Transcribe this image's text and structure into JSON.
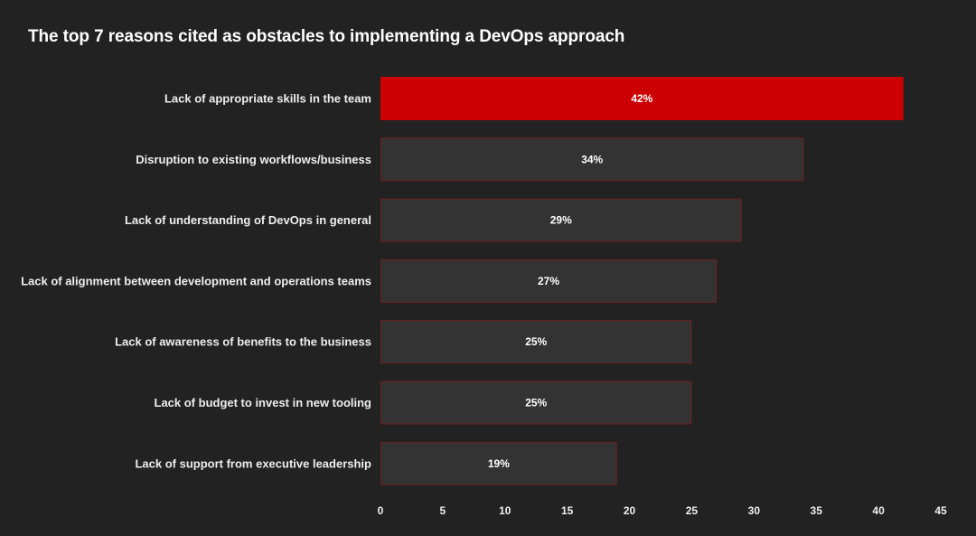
{
  "chart_data": {
    "type": "bar",
    "orientation": "horizontal",
    "title": "The top 7 reasons cited as obstacles to implementing a DevOps approach",
    "categories": [
      "Lack of appropriate skills in the team",
      "Disruption to existing workflows/business",
      "Lack of understanding of DevOps in general",
      "Lack of alignment between development and operations teams",
      "Lack of awareness of benefits to the business",
      "Lack of budget to invest in new tooling",
      "Lack of support from executive leadership"
    ],
    "values": [
      42,
      34,
      29,
      27,
      25,
      25,
      19
    ],
    "data_labels": [
      "42%",
      "34%",
      "29%",
      "27%",
      "25%",
      "25%",
      "19%"
    ],
    "xlim": [
      0,
      45
    ],
    "x_ticks": [
      0,
      5,
      10,
      15,
      20,
      25,
      30,
      35,
      40,
      45
    ],
    "grid": false,
    "legend": "none",
    "colors": {
      "highlight": "#cc0000",
      "bar": "#333333",
      "bar_border": "#6e1f1f",
      "background": "#222222"
    }
  }
}
